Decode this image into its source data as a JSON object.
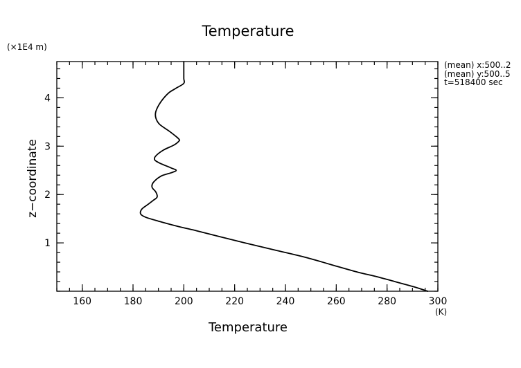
{
  "chart_data": {
    "type": "line",
    "title": "Temperature",
    "xlabel": "Temperature",
    "xlabel_unit": "(K)",
    "ylabel": "z−coordinate",
    "ylabel_unit": "(×1E4 m)",
    "xlim": [
      150,
      300
    ],
    "ylim": [
      0,
      4.75
    ],
    "xticks": [
      160,
      180,
      200,
      220,
      240,
      260,
      280,
      300
    ],
    "yticks": [
      1,
      2,
      3,
      4
    ],
    "grid": false,
    "info_lines": [
      "(mean) x:500..2",
      "(mean) y:500..5",
      "t=518400 sec"
    ],
    "series": [
      {
        "x": [
          296,
          290,
          283,
          276,
          268,
          258,
          248,
          236,
          224,
          214,
          205,
          197,
          190,
          185,
          183,
          183.5,
          186,
          188,
          189.5,
          189,
          187.5,
          188,
          191,
          195,
          197,
          195,
          190.5,
          188.5,
          189,
          192,
          196,
          198,
          198,
          194.5,
          190.5,
          189,
          189,
          191,
          194,
          197,
          200,
          200,
          200,
          200
        ],
        "y": [
          0,
          0.1,
          0.2,
          0.3,
          0.4,
          0.55,
          0.7,
          0.85,
          1.0,
          1.13,
          1.25,
          1.35,
          1.45,
          1.53,
          1.6,
          1.7,
          1.8,
          1.88,
          1.95,
          2.05,
          2.15,
          2.25,
          2.38,
          2.45,
          2.5,
          2.55,
          2.65,
          2.72,
          2.8,
          2.92,
          3.02,
          3.1,
          3.15,
          3.3,
          3.45,
          3.58,
          3.72,
          3.92,
          4.1,
          4.2,
          4.3,
          4.4,
          4.6,
          4.78
        ]
      }
    ]
  }
}
